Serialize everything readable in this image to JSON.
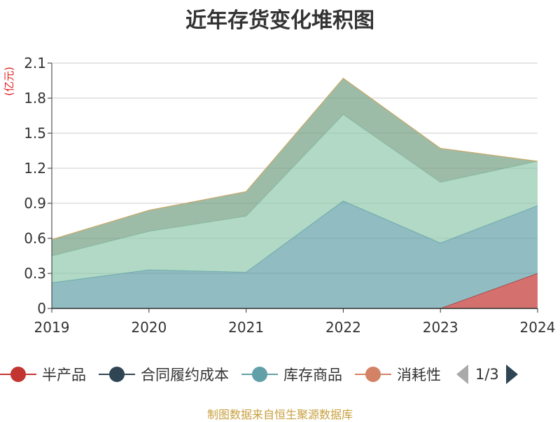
{
  "chart_data": {
    "type": "area",
    "stacked": true,
    "title": "近年存货变化堆积图",
    "unit": "(亿元)",
    "categories": [
      "2019",
      "2020",
      "2021",
      "2022",
      "2023",
      "2024"
    ],
    "ylim": [
      0,
      2.1
    ],
    "yticks": [
      "0",
      "0.3",
      "0.6",
      "0.9",
      "1.2",
      "1.5",
      "1.8",
      "2.1"
    ],
    "grid": true,
    "series": [
      {
        "name": "半产品",
        "values": [
          0,
          0,
          0,
          0,
          0,
          0.3
        ],
        "color": "#c23531"
      },
      {
        "name": "合同履约成本",
        "values": [
          0,
          0,
          0,
          0,
          0,
          0
        ],
        "color": "#2f4554"
      },
      {
        "name": "库存商品",
        "values": [
          0.22,
          0.33,
          0.31,
          0.92,
          0.56,
          0.58
        ],
        "color": "#61a0a8"
      },
      {
        "name": "消耗性",
        "values": [
          0,
          0,
          0,
          0,
          0,
          0
        ],
        "color": "#d48265"
      },
      {
        "values": [
          0.23,
          0.33,
          0.48,
          0.74,
          0.52,
          0.38
        ],
        "color": "#91c7ae"
      },
      {
        "values": [
          0.14,
          0.18,
          0.21,
          0.31,
          0.29,
          0.0
        ],
        "color": "#749f83"
      }
    ],
    "legend_placement": "bottom"
  },
  "legend": {
    "items": [
      {
        "label": "半产品",
        "color": "#c23531"
      },
      {
        "label": "合同履约成本",
        "color": "#2f4554"
      },
      {
        "label": "库存商品",
        "color": "#61a0a8"
      },
      {
        "label": "消耗性",
        "color": "#d48265"
      }
    ],
    "page": "1/3"
  },
  "footer": "制图数据来自恒生聚源数据库"
}
